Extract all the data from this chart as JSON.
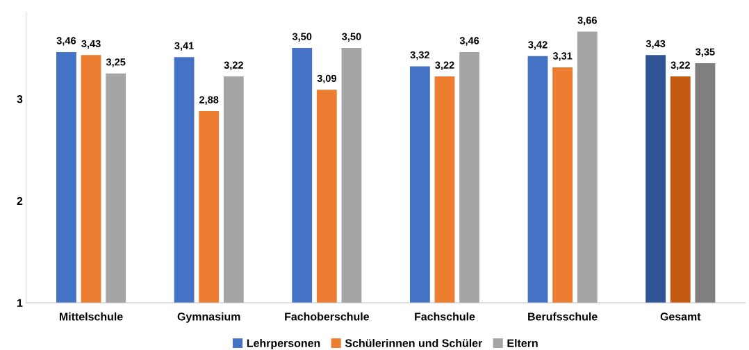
{
  "chart_data": {
    "type": "bar",
    "categories": [
      "Mittelschule",
      "Gymnasium",
      "Fachoberschule",
      "Fachschule",
      "Berufsschule",
      "Gesamt"
    ],
    "series": [
      {
        "name": "Lehrpersonen",
        "color": "#4472c4",
        "colors": [
          "#4472c4",
          "#4472c4",
          "#4472c4",
          "#4472c4",
          "#4472c4",
          "#2f5597"
        ],
        "values": [
          3.46,
          3.41,
          3.5,
          3.32,
          3.42,
          3.43
        ],
        "value_labels": [
          "3,46",
          "3,41",
          "3,50",
          "3,32",
          "3,42",
          "3,43"
        ]
      },
      {
        "name": "Schülerinnen und Schüler",
        "color": "#ed7d31",
        "colors": [
          "#ed7d31",
          "#ed7d31",
          "#ed7d31",
          "#ed7d31",
          "#ed7d31",
          "#c55a11"
        ],
        "values": [
          3.43,
          2.88,
          3.09,
          3.22,
          3.31,
          3.22
        ],
        "value_labels": [
          "3,43",
          "2,88",
          "3,09",
          "3,22",
          "3,31",
          "3,22"
        ]
      },
      {
        "name": "Eltern",
        "color": "#a5a5a5",
        "colors": [
          "#a5a5a5",
          "#a5a5a5",
          "#a5a5a5",
          "#a5a5a5",
          "#a5a5a5",
          "#7f7f7f"
        ],
        "values": [
          3.25,
          3.22,
          3.5,
          3.46,
          3.66,
          3.35
        ],
        "value_labels": [
          "3,25",
          "3,22",
          "3,50",
          "3,46",
          "3,66",
          "3,35"
        ]
      }
    ],
    "ylim": [
      1,
      3.85
    ],
    "yticks": [
      1,
      2,
      3
    ],
    "grid": false,
    "legend": "bottom"
  }
}
